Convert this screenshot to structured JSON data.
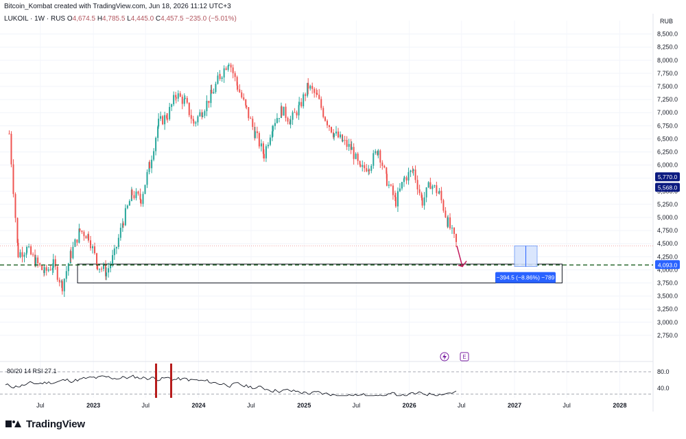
{
  "header": {
    "attribution": "Bitcoin_Kombat created with TradingView.com, Jun 18, 2026 11:12 UTC+3",
    "symbol": "LUKOIL · 1W · RUS",
    "open_label": "O",
    "open": "4,674.5",
    "high_label": "H",
    "high": "4,785.5",
    "low_label": "L",
    "low": "4,445.0",
    "close_label": "C",
    "close": "4,457.5",
    "change": "−235.0 (−5.01%)",
    "currency": "RUB"
  },
  "colors": {
    "up": "#26a69a",
    "down": "#ef5350",
    "axis_badge": "#2962ff",
    "dark_badge": "#0b1a80",
    "rsi": "#131722",
    "rsi_marker": "#b71c1c",
    "range_fill": "#d6e4fd",
    "arrow": "#c2185b"
  },
  "rsi": {
    "label": "80/20 14 RSI  27.1",
    "levels": [
      "80.0",
      "40.0"
    ]
  },
  "brand": {
    "name": "TradingView",
    "logo_icon": "tradingview-logo-icon"
  },
  "icons": {
    "flash": "lightning-icon",
    "earnings": "earnings-e-icon"
  },
  "chart_data": {
    "type": "candlestick",
    "y_unit": "RUB",
    "ylim": [
      2500,
      8600
    ],
    "y_ticks": [
      "8,500.0",
      "8,250.0",
      "8,000.0",
      "7,750.0",
      "7,500.0",
      "7,250.0",
      "7,000.0",
      "6,750.0",
      "6,500.0",
      "6,250.0",
      "6,000.0",
      "5,750.0",
      "5,500.0",
      "5,250.0",
      "5,000.0",
      "4,750.0",
      "4,500.0",
      "4,250.0",
      "4,000.0",
      "3,750.0",
      "3,500.0",
      "3,250.0",
      "3,000.0",
      "2,750.0"
    ],
    "x_ticks": [
      "Jul",
      "2023",
      "Jul",
      "2024",
      "Jul",
      "2025",
      "Jul",
      "2026",
      "Jul",
      "2027",
      "Jul",
      "2028"
    ],
    "price_badges": [
      {
        "label": "5,770.0",
        "value": 5770,
        "color": "#0b1a80"
      },
      {
        "label": "5,568.0",
        "value": 5568,
        "color": "#0b1a80"
      },
      {
        "label": "4,093.0",
        "value": 4093,
        "color": "#2962ff"
      }
    ],
    "support_zone": {
      "top": 4110,
      "bottom": 3750,
      "x_start": "2022-12",
      "x_end": "2027-06"
    },
    "target_line": 4093,
    "prev_close_line": 4457.5,
    "measure_box": {
      "label": "−394.5 (−8.86%) −789",
      "from": 4457.5,
      "to": 4063
    },
    "close_path": [
      [
        "2022-03",
        6600
      ],
      [
        "2022-04",
        4300
      ],
      [
        "2022-05",
        4400
      ],
      [
        "2022-06",
        4150
      ],
      [
        "2022-07",
        3950
      ],
      [
        "2022-08",
        4100
      ],
      [
        "2022-09",
        3700
      ],
      [
        "2022-10",
        4300
      ],
      [
        "2022-11",
        4750
      ],
      [
        "2022-12",
        4650
      ],
      [
        "2023-01",
        4100
      ],
      [
        "2023-02",
        3950
      ],
      [
        "2023-03",
        4300
      ],
      [
        "2023-04",
        4950
      ],
      [
        "2023-05",
        5450
      ],
      [
        "2023-06",
        5350
      ],
      [
        "2023-07",
        6000
      ],
      [
        "2023-08",
        6800
      ],
      [
        "2023-09",
        6950
      ],
      [
        "2023-10",
        7350
      ],
      [
        "2023-11",
        7200
      ],
      [
        "2023-12",
        6800
      ],
      [
        "2024-01",
        7050
      ],
      [
        "2024-02",
        7350
      ],
      [
        "2024-03",
        7700
      ],
      [
        "2024-04",
        8000
      ],
      [
        "2024-05",
        7500
      ],
      [
        "2024-06",
        7050
      ],
      [
        "2024-07",
        6600
      ],
      [
        "2024-08",
        6200
      ],
      [
        "2024-09",
        6800
      ],
      [
        "2024-10",
        7050
      ],
      [
        "2024-11",
        6850
      ],
      [
        "2024-12",
        7100
      ],
      [
        "2025-01",
        7500
      ],
      [
        "2025-02",
        7300
      ],
      [
        "2025-03",
        6900
      ],
      [
        "2025-04",
        6600
      ],
      [
        "2025-05",
        6450
      ],
      [
        "2025-06",
        6300
      ],
      [
        "2025-07",
        5900
      ],
      [
        "2025-08",
        6000
      ],
      [
        "2025-09",
        6300
      ],
      [
        "2025-10",
        5700
      ],
      [
        "2025-11",
        5300
      ],
      [
        "2025-12",
        5750
      ],
      [
        "2026-01",
        5900
      ],
      [
        "2026-02",
        5300
      ],
      [
        "2026-03",
        5650
      ],
      [
        "2026-04",
        5450
      ],
      [
        "2026-05",
        4900
      ],
      [
        "2026-06",
        4457.5
      ]
    ]
  }
}
